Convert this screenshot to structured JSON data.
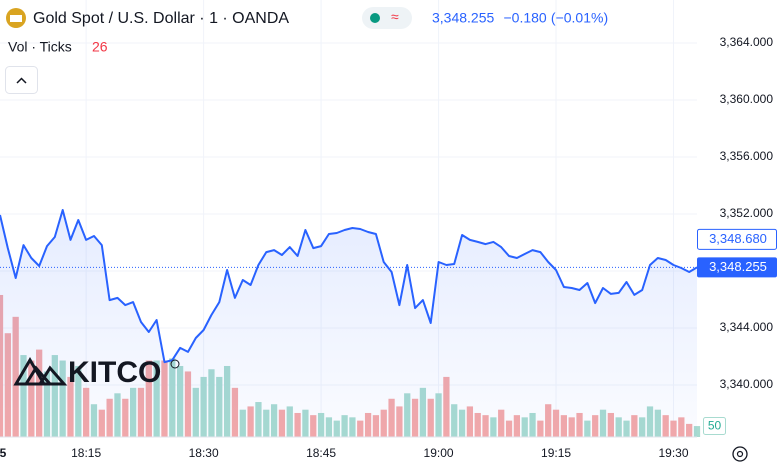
{
  "chart_data": {
    "type": "line",
    "title": "Gold Spot / U.S. Dollar · 1 · OANDA",
    "last_price": {
      "value": 3348.255,
      "label": "3,348.255"
    },
    "change": {
      "value": -0.18,
      "label": "−0.180"
    },
    "change_pct": {
      "value": -0.01,
      "label": "(−0.01%)"
    },
    "bid_price": {
      "value": 3348.68,
      "label": "3,348.680"
    },
    "watermark": "KITCO",
    "color": "#2962ff",
    "grid": true,
    "x": [
      "18:04",
      "18:05",
      "18:06",
      "18:07",
      "18:08",
      "18:09",
      "18:10",
      "18:11",
      "18:12",
      "18:13",
      "18:14",
      "18:15",
      "18:16",
      "18:17",
      "18:18",
      "18:19",
      "18:20",
      "18:21",
      "18:22",
      "18:23",
      "18:24",
      "18:25",
      "18:26",
      "18:27",
      "18:28",
      "18:29",
      "18:30",
      "18:31",
      "18:32",
      "18:33",
      "18:34",
      "18:35",
      "18:36",
      "18:37",
      "18:38",
      "18:39",
      "18:40",
      "18:41",
      "18:42",
      "18:43",
      "18:44",
      "18:45",
      "18:46",
      "18:47",
      "18:48",
      "18:49",
      "18:50",
      "18:51",
      "18:52",
      "18:53",
      "18:54",
      "18:55",
      "18:56",
      "18:57",
      "18:58",
      "18:59",
      "19:00",
      "19:01",
      "19:02",
      "19:03",
      "19:04",
      "19:05",
      "19:06",
      "19:07",
      "19:08",
      "19:09",
      "19:10",
      "19:11",
      "19:12",
      "19:13",
      "19:14",
      "19:15",
      "19:16",
      "19:17",
      "19:18",
      "19:19",
      "19:20",
      "19:21",
      "19:22",
      "19:23",
      "19:24",
      "19:25",
      "19:26",
      "19:27",
      "19:28",
      "19:29",
      "19:30",
      "19:31",
      "19:32",
      "19:33"
    ],
    "values": [
      3351.93,
      3349.61,
      3347.51,
      3349.82,
      3348.91,
      3348.35,
      3349.75,
      3350.39,
      3352.28,
      3350.18,
      3351.58,
      3350.18,
      3350.46,
      3349.82,
      3345.96,
      3346.11,
      3345.61,
      3345.82,
      3344.42,
      3343.72,
      3344.56,
      3341.61,
      3341.75,
      3342.6,
      3342.32,
      3343.3,
      3343.86,
      3344.91,
      3345.82,
      3348.07,
      3346.11,
      3347.37,
      3347.02,
      3348.42,
      3349.33,
      3349.47,
      3349.12,
      3349.68,
      3349.05,
      3350.88,
      3349.61,
      3349.75,
      3350.6,
      3350.67,
      3350.88,
      3351.02,
      3350.95,
      3350.74,
      3350.6,
      3348.63,
      3347.93,
      3345.61,
      3348.42,
      3345.4,
      3345.96,
      3344.35,
      3348.63,
      3348.42,
      3348.49,
      3350.53,
      3350.18,
      3350.04,
      3349.89,
      3350.04,
      3349.68,
      3349.05,
      3348.91,
      3349.19,
      3349.47,
      3349.33,
      3348.63,
      3348.07,
      3346.88,
      3346.81,
      3346.67,
      3347.16,
      3345.75,
      3346.81,
      3346.39,
      3346.46,
      3347.23,
      3346.32,
      3346.67,
      3348.42,
      3348.91,
      3348.77,
      3348.42,
      3348.21,
      3347.93,
      3348.255
    ],
    "xlim": [
      "18:04",
      "19:33"
    ],
    "xticks": [
      {
        "value": "18:04",
        "label": "5"
      },
      "18:15",
      "18:30",
      "18:45",
      "19:00",
      "19:15",
      "19:30"
    ],
    "ylim": [
      3336.35,
      3367.02
    ],
    "yticks": [
      {
        "value": 3340,
        "label": "3,340.000"
      },
      {
        "value": 3344,
        "label": "3,344.000"
      },
      {
        "value": 3348,
        "label": "3,348.000"
      },
      {
        "value": 3352,
        "label": "3,352.000"
      },
      {
        "value": 3356,
        "label": "3,356.000"
      },
      {
        "value": 3360,
        "label": "3,360.000"
      },
      {
        "value": 3364,
        "label": "3,364.000"
      }
    ],
    "volume": {
      "name": "Vol · Ticks",
      "legend_value": 26,
      "up_color": "#a8dbd0",
      "down_color": "#f4a9a9",
      "ylim": [
        0,
        2000
      ],
      "values": [
        650,
        475,
        550,
        375,
        350,
        400,
        300,
        375,
        350,
        275,
        325,
        225,
        150,
        125,
        175,
        200,
        175,
        225,
        225,
        350,
        350,
        350,
        360,
        325,
        300,
        225,
        275,
        310,
        275,
        325,
        225,
        125,
        140,
        160,
        125,
        150,
        125,
        140,
        110,
        125,
        100,
        110,
        90,
        75,
        100,
        90,
        75,
        110,
        100,
        125,
        175,
        140,
        200,
        175,
        225,
        175,
        200,
        275,
        150,
        125,
        140,
        110,
        100,
        90,
        125,
        75,
        100,
        90,
        110,
        75,
        150,
        125,
        100,
        90,
        110,
        75,
        100,
        125,
        110,
        90,
        75,
        100,
        90,
        140,
        125,
        100,
        75,
        90,
        60,
        50
      ]
    }
  }
}
